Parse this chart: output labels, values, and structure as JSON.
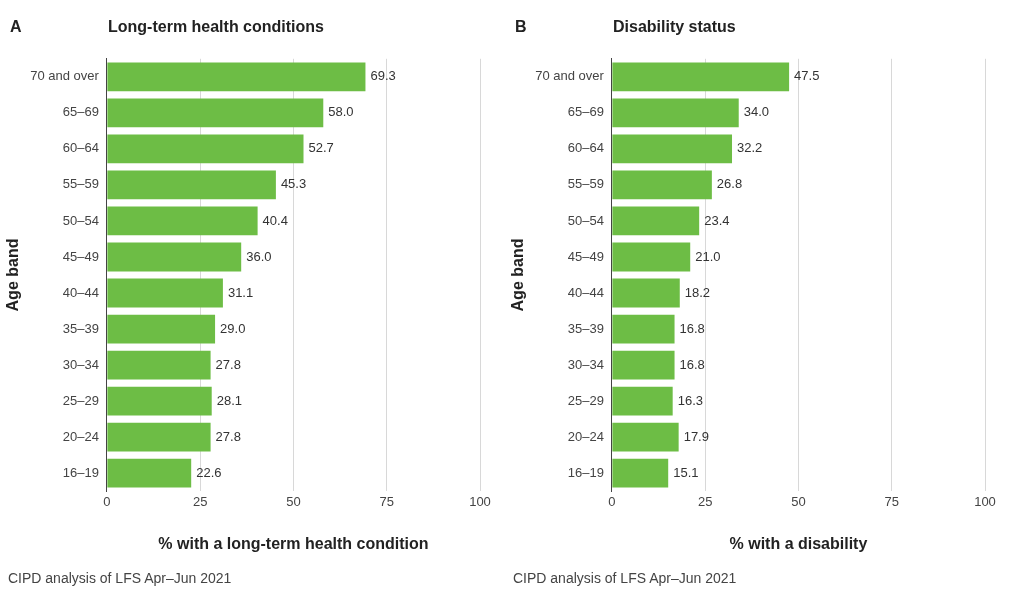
{
  "chart_data": [
    {
      "type": "bar",
      "orientation": "horizontal",
      "title": "Long-term health conditions",
      "xlabel": "% with a long-term health condition",
      "ylabel": "Age band",
      "categories": [
        "70 and over",
        "65–69",
        "60–64",
        "55–59",
        "50–54",
        "45–49",
        "40–44",
        "35–39",
        "30–34",
        "25–29",
        "20–24",
        "16–19"
      ],
      "values": [
        69.3,
        58.0,
        52.7,
        45.3,
        40.4,
        36.0,
        31.1,
        29.0,
        27.8,
        28.1,
        27.8,
        22.6
      ],
      "value_labels": [
        "69.3",
        "58.0",
        "52.7",
        "45.3",
        "40.4",
        "36.0",
        "31.1",
        "29.0",
        "27.8",
        "28.1",
        "27.8",
        "22.6"
      ],
      "color": "#6dbd45",
      "xlim": [
        0,
        100
      ],
      "xticks": [
        0,
        25,
        50,
        75,
        100
      ],
      "grid": "x",
      "legend": false,
      "annotations": [
        "A",
        "CIPD analysis of LFS Apr–Jun 2021"
      ]
    },
    {
      "type": "bar",
      "orientation": "horizontal",
      "title": "Disability status",
      "xlabel": "% with a disability",
      "ylabel": "Age band",
      "categories": [
        "70 and over",
        "65–69",
        "60–64",
        "55–59",
        "50–54",
        "45–49",
        "40–44",
        "35–39",
        "30–34",
        "25–29",
        "20–24",
        "16–19"
      ],
      "values": [
        47.5,
        34.0,
        32.2,
        26.8,
        23.4,
        21.0,
        18.2,
        16.8,
        16.8,
        16.3,
        17.9,
        15.1
      ],
      "value_labels": [
        "47.5",
        "34.0",
        "32.2",
        "26.8",
        "23.4",
        "21.0",
        "18.2",
        "16.8",
        "16.8",
        "16.3",
        "17.9",
        "15.1"
      ],
      "color": "#6dbd45",
      "xlim": [
        0,
        100
      ],
      "xticks": [
        0,
        25,
        50,
        75,
        100
      ],
      "grid": "x",
      "legend": false,
      "annotations": [
        "B",
        "CIPD analysis of LFS Apr–Jun 2021"
      ]
    }
  ]
}
